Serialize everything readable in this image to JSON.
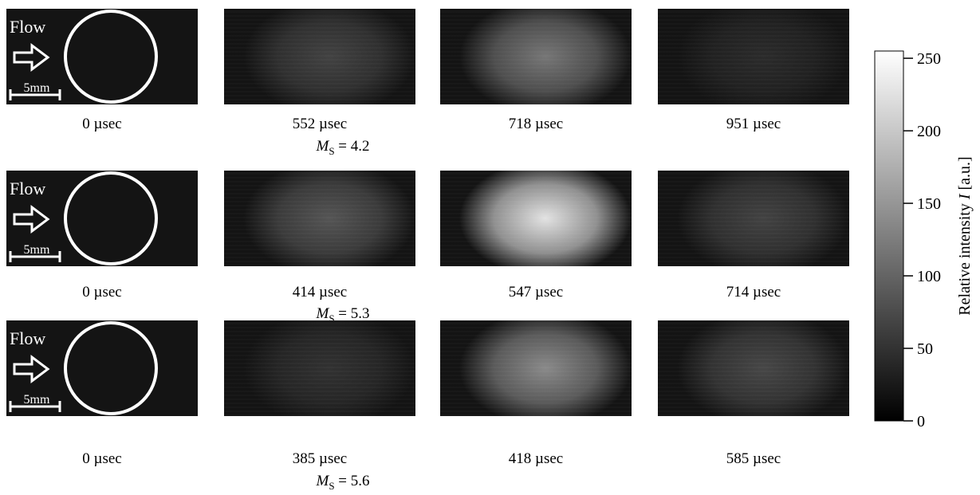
{
  "rows": [
    {
      "times": [
        "0 µsec",
        "552 µsec",
        "718 µsec",
        "951 µsec"
      ],
      "label": {
        "symbol": "M",
        "subscript": "S",
        "value": "= 4.2"
      }
    },
    {
      "times": [
        "0 µsec",
        "414 µsec",
        "547 µsec",
        "714 µsec"
      ],
      "label": {
        "symbol": "M",
        "subscript": "S",
        "value": "= 5.3"
      }
    },
    {
      "times": [
        "0 µsec",
        "385 µsec",
        "418 µsec",
        "585 µsec"
      ],
      "label": {
        "symbol": "M",
        "subscript": "S",
        "value": "= 5.6"
      }
    }
  ],
  "flow_label": "Flow",
  "scale_label": "5mm",
  "colorbar": {
    "lim": [
      0,
      255
    ],
    "ticks": [
      0,
      50,
      100,
      150,
      200,
      250
    ],
    "label_text": "Relative intensity",
    "label_symbol": "I",
    "label_unit": "[a.u.]"
  }
}
